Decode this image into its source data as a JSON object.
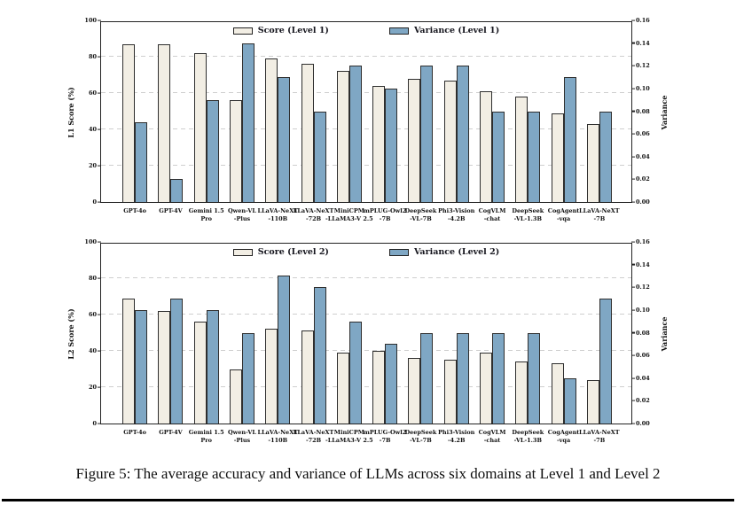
{
  "caption": "Figure 5: The average accuracy and variance of LLMs across six domains at Level 1 and Level 2",
  "colors": {
    "score_fill": "#f2eee4",
    "variance_fill": "#7fa7c4",
    "bar_edge": "#2e2e2e",
    "grid": "#cfcfcf",
    "frame": "#222222",
    "text": "#111111"
  },
  "chart_data": [
    {
      "type": "bar",
      "title": "",
      "ylabel_left": "L1 Score (%)",
      "ylabel_right": "Variance",
      "ylim_left": [
        0,
        100
      ],
      "ylim_right": [
        0,
        0.16
      ],
      "yticks_left": [
        0,
        20,
        40,
        60,
        80,
        100
      ],
      "yticks_right": [
        "0.00",
        "0.02",
        "0.04",
        "0.06",
        "0.08",
        "0.10",
        "0.12",
        "0.14",
        "0.16"
      ],
      "grid_values": [
        20,
        40,
        60,
        80
      ],
      "grid": "dashed horizontal at left-axis ticks",
      "legend_position": "top center inside plot",
      "legend": [
        "Score (Level 1)",
        "Variance (Level 1)"
      ],
      "categories": [
        "GPT-4o",
        "GPT-4V",
        "Gemini 1.5\nPro",
        "Qwen-VL\n-Plus",
        "LLaVA-NeXT\n-110B",
        "LLaVA-NeXT\n-72B",
        "MiniCPM\n-LLaMA3-V 2.5",
        "mPLUG-Owl2\n-7B",
        "DeepSeek\n-VL-7B",
        "Phi3-Vision\n-4.2B",
        "CogVLM\n-chat",
        "DeepSeek\n-VL-1.3B",
        "CogAgent\n-vqa",
        "LLaVA-NeXT\n-7B"
      ],
      "series": [
        {
          "name": "Score (Level 1)",
          "axis": "left",
          "values": [
            87,
            87,
            82,
            56,
            79,
            76,
            72,
            64,
            68,
            67,
            61,
            58,
            49,
            43
          ]
        },
        {
          "name": "Variance (Level 1)",
          "axis": "right",
          "values": [
            0.07,
            0.02,
            0.09,
            0.14,
            0.11,
            0.08,
            0.12,
            0.1,
            0.12,
            0.12,
            0.08,
            0.08,
            0.11,
            0.08
          ]
        }
      ]
    },
    {
      "type": "bar",
      "title": "",
      "ylabel_left": "L2 Score (%)",
      "ylabel_right": "Variance",
      "ylim_left": [
        0,
        100
      ],
      "ylim_right": [
        0,
        0.16
      ],
      "yticks_left": [
        0,
        20,
        40,
        60,
        80,
        100
      ],
      "yticks_right": [
        "0.00",
        "0.02",
        "0.04",
        "0.06",
        "0.08",
        "0.10",
        "0.12",
        "0.14",
        "0.16"
      ],
      "grid_values": [
        20,
        40,
        60,
        80
      ],
      "grid": "dashed horizontal at left-axis ticks",
      "legend_position": "top center inside plot",
      "legend": [
        "Score (Level 2)",
        "Variance (Level 2)"
      ],
      "categories": [
        "GPT-4o",
        "GPT-4V",
        "Gemini 1.5\nPro",
        "Qwen-VL\n-Plus",
        "LLaVA-NeXT\n-110B",
        "LLaVA-NeXT\n-72B",
        "MiniCPM\n-LLaMA3-V 2.5",
        "mPLUG-Owl2\n-7B",
        "DeepSeek\n-VL-7B",
        "Phi3-Vision\n-4.2B",
        "CogVLM\n-chat",
        "DeepSeek\n-VL-1.3B",
        "CogAgent\n-vqa",
        "LLaVA-NeXT\n-7B"
      ],
      "series": [
        {
          "name": "Score (Level 2)",
          "axis": "left",
          "values": [
            69,
            62,
            56,
            30,
            52,
            51,
            39,
            40,
            36,
            35,
            39,
            34,
            33,
            24
          ]
        },
        {
          "name": "Variance (Level 2)",
          "axis": "right",
          "values": [
            0.1,
            0.11,
            0.1,
            0.08,
            0.13,
            0.12,
            0.09,
            0.07,
            0.08,
            0.08,
            0.08,
            0.08,
            0.04,
            0.11
          ]
        }
      ]
    }
  ]
}
